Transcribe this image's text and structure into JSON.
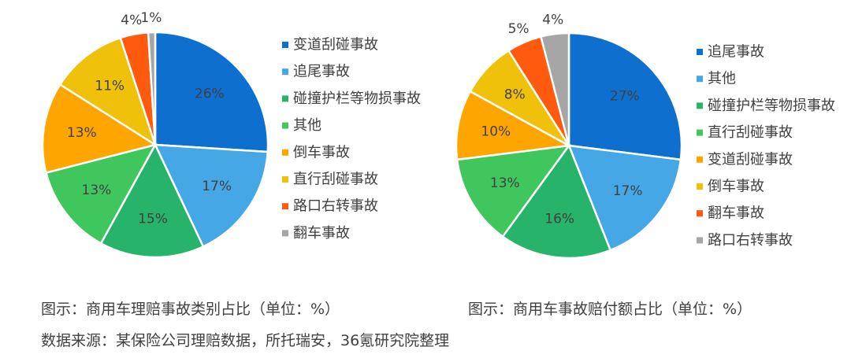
{
  "chart_data": [
    {
      "type": "pie",
      "title": "",
      "categories": [
        "变道刮碰事故",
        "追尾事故",
        "碰撞护栏等物损事故",
        "其他",
        "倒车事故",
        "直行刮碰事故",
        "路口右转事故",
        "翻车事故"
      ],
      "values": [
        26,
        17,
        15,
        13,
        13,
        11,
        4,
        1
      ],
      "labels": [
        "26%",
        "17%",
        "15%",
        "13%",
        "13%",
        "11%",
        "4%",
        "1%"
      ],
      "colors": [
        "#0F6FCF",
        "#45A7E6",
        "#27B36A",
        "#3FC75E",
        "#FFA500",
        "#EFC10A",
        "#FF5A0D",
        "#A6A6A6"
      ],
      "legend_position": "right",
      "start_angle": "12 o'clock, clockwise"
    },
    {
      "type": "pie",
      "title": "",
      "categories": [
        "追尾事故",
        "其他",
        "碰撞护栏等物损事故",
        "直行刮碰事故",
        "变道刮碰事故",
        "倒车事故",
        "翻车事故",
        "路口右转事故"
      ],
      "values": [
        27,
        17,
        16,
        13,
        10,
        8,
        5,
        4
      ],
      "labels": [
        "27%",
        "17%",
        "16%",
        "13%",
        "10%",
        "8%",
        "5%",
        "4%"
      ],
      "colors": [
        "#0F6FCF",
        "#45A7E6",
        "#27B36A",
        "#3FC75E",
        "#FFA500",
        "#EFC10A",
        "#FF5A0D",
        "#A6A6A6"
      ],
      "legend_position": "right",
      "start_angle": "12 o'clock, clockwise"
    }
  ],
  "captions": {
    "left": "图示：商用车理赔事故类别占比（单位：%）",
    "right": "图示：商用车事故赔付额占比（单位：%）",
    "source": "数据来源：某保险公司理赔数据，所托瑞安，36氪研究院整理"
  }
}
